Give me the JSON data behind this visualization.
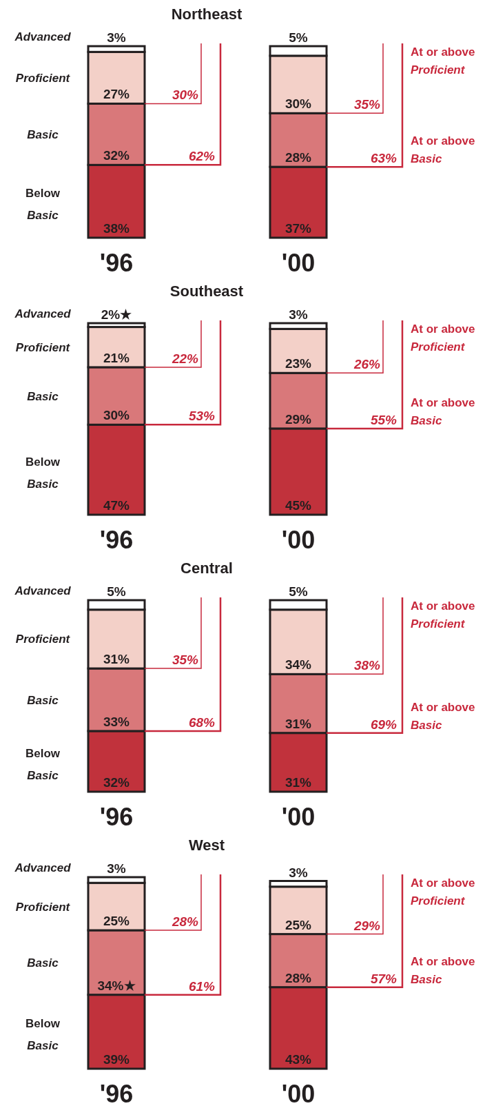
{
  "chart_data": [
    {
      "type": "bar",
      "stacked": true,
      "title": "Northeast",
      "categories": [
        "'96",
        "'00"
      ],
      "series": [
        {
          "name": "Below Basic",
          "color": "#c1323c",
          "values": [
            38,
            37
          ],
          "value_labels": [
            "38%",
            "37%"
          ]
        },
        {
          "name": "Basic",
          "color": "#d9787a",
          "values": [
            32,
            28
          ],
          "value_labels": [
            "32%",
            "28%"
          ]
        },
        {
          "name": "Proficient",
          "color": "#f3d0c8",
          "values": [
            27,
            30
          ],
          "value_labels": [
            "27%",
            "30%"
          ]
        },
        {
          "name": "Advanced",
          "color": "#ffffff",
          "values": [
            3,
            5
          ],
          "value_labels": [
            "3%",
            "5%"
          ]
        }
      ],
      "annotations": [
        "30%",
        "62%",
        "35%",
        "63%",
        "At or above Proficient",
        "At or above Basic"
      ]
    },
    {
      "type": "bar",
      "stacked": true,
      "title": "Southeast",
      "categories": [
        "'96",
        "'00"
      ],
      "series": [
        {
          "name": "Below Basic",
          "color": "#c1323c",
          "values": [
            47,
            45
          ],
          "value_labels": [
            "47%",
            "45%"
          ]
        },
        {
          "name": "Basic",
          "color": "#d9787a",
          "values": [
            30,
            29
          ],
          "value_labels": [
            "30%",
            "29%"
          ]
        },
        {
          "name": "Proficient",
          "color": "#f3d0c8",
          "values": [
            21,
            23
          ],
          "value_labels": [
            "21%",
            "23%"
          ]
        },
        {
          "name": "Advanced",
          "color": "#ffffff",
          "values": [
            2,
            3
          ],
          "value_labels": [
            "2%★",
            "3%"
          ]
        }
      ],
      "annotations": [
        "22%",
        "53%",
        "26%",
        "55%",
        "At or above Proficient",
        "At or above Basic"
      ]
    },
    {
      "type": "bar",
      "stacked": true,
      "title": "Central",
      "categories": [
        "'96",
        "'00"
      ],
      "series": [
        {
          "name": "Below Basic",
          "color": "#c1323c",
          "values": [
            32,
            31
          ],
          "value_labels": [
            "32%",
            "31%"
          ]
        },
        {
          "name": "Basic",
          "color": "#d9787a",
          "values": [
            33,
            31
          ],
          "value_labels": [
            "33%",
            "31%"
          ]
        },
        {
          "name": "Proficient",
          "color": "#f3d0c8",
          "values": [
            31,
            34
          ],
          "value_labels": [
            "31%",
            "34%"
          ]
        },
        {
          "name": "Advanced",
          "color": "#ffffff",
          "values": [
            5,
            5
          ],
          "value_labels": [
            "5%",
            "5%"
          ]
        }
      ],
      "annotations": [
        "35%",
        "68%",
        "38%",
        "69%",
        "At or above Proficient",
        "At or above Basic"
      ]
    },
    {
      "type": "bar",
      "stacked": true,
      "title": "West",
      "categories": [
        "'96",
        "'00"
      ],
      "series": [
        {
          "name": "Below Basic",
          "color": "#c1323c",
          "values": [
            39,
            43
          ],
          "value_labels": [
            "39%",
            "43%"
          ]
        },
        {
          "name": "Basic",
          "color": "#d9787a",
          "values": [
            34,
            28
          ],
          "value_labels": [
            "34%★",
            "28%"
          ]
        },
        {
          "name": "Proficient",
          "color": "#f3d0c8",
          "values": [
            25,
            25
          ],
          "value_labels": [
            "25%",
            "25%"
          ]
        },
        {
          "name": "Advanced",
          "color": "#ffffff",
          "values": [
            3,
            3
          ],
          "value_labels": [
            "3%",
            "3%"
          ]
        }
      ],
      "annotations": [
        "28%",
        "61%",
        "29%",
        "57%",
        "At or above Proficient",
        "At or above Basic"
      ]
    }
  ]
}
